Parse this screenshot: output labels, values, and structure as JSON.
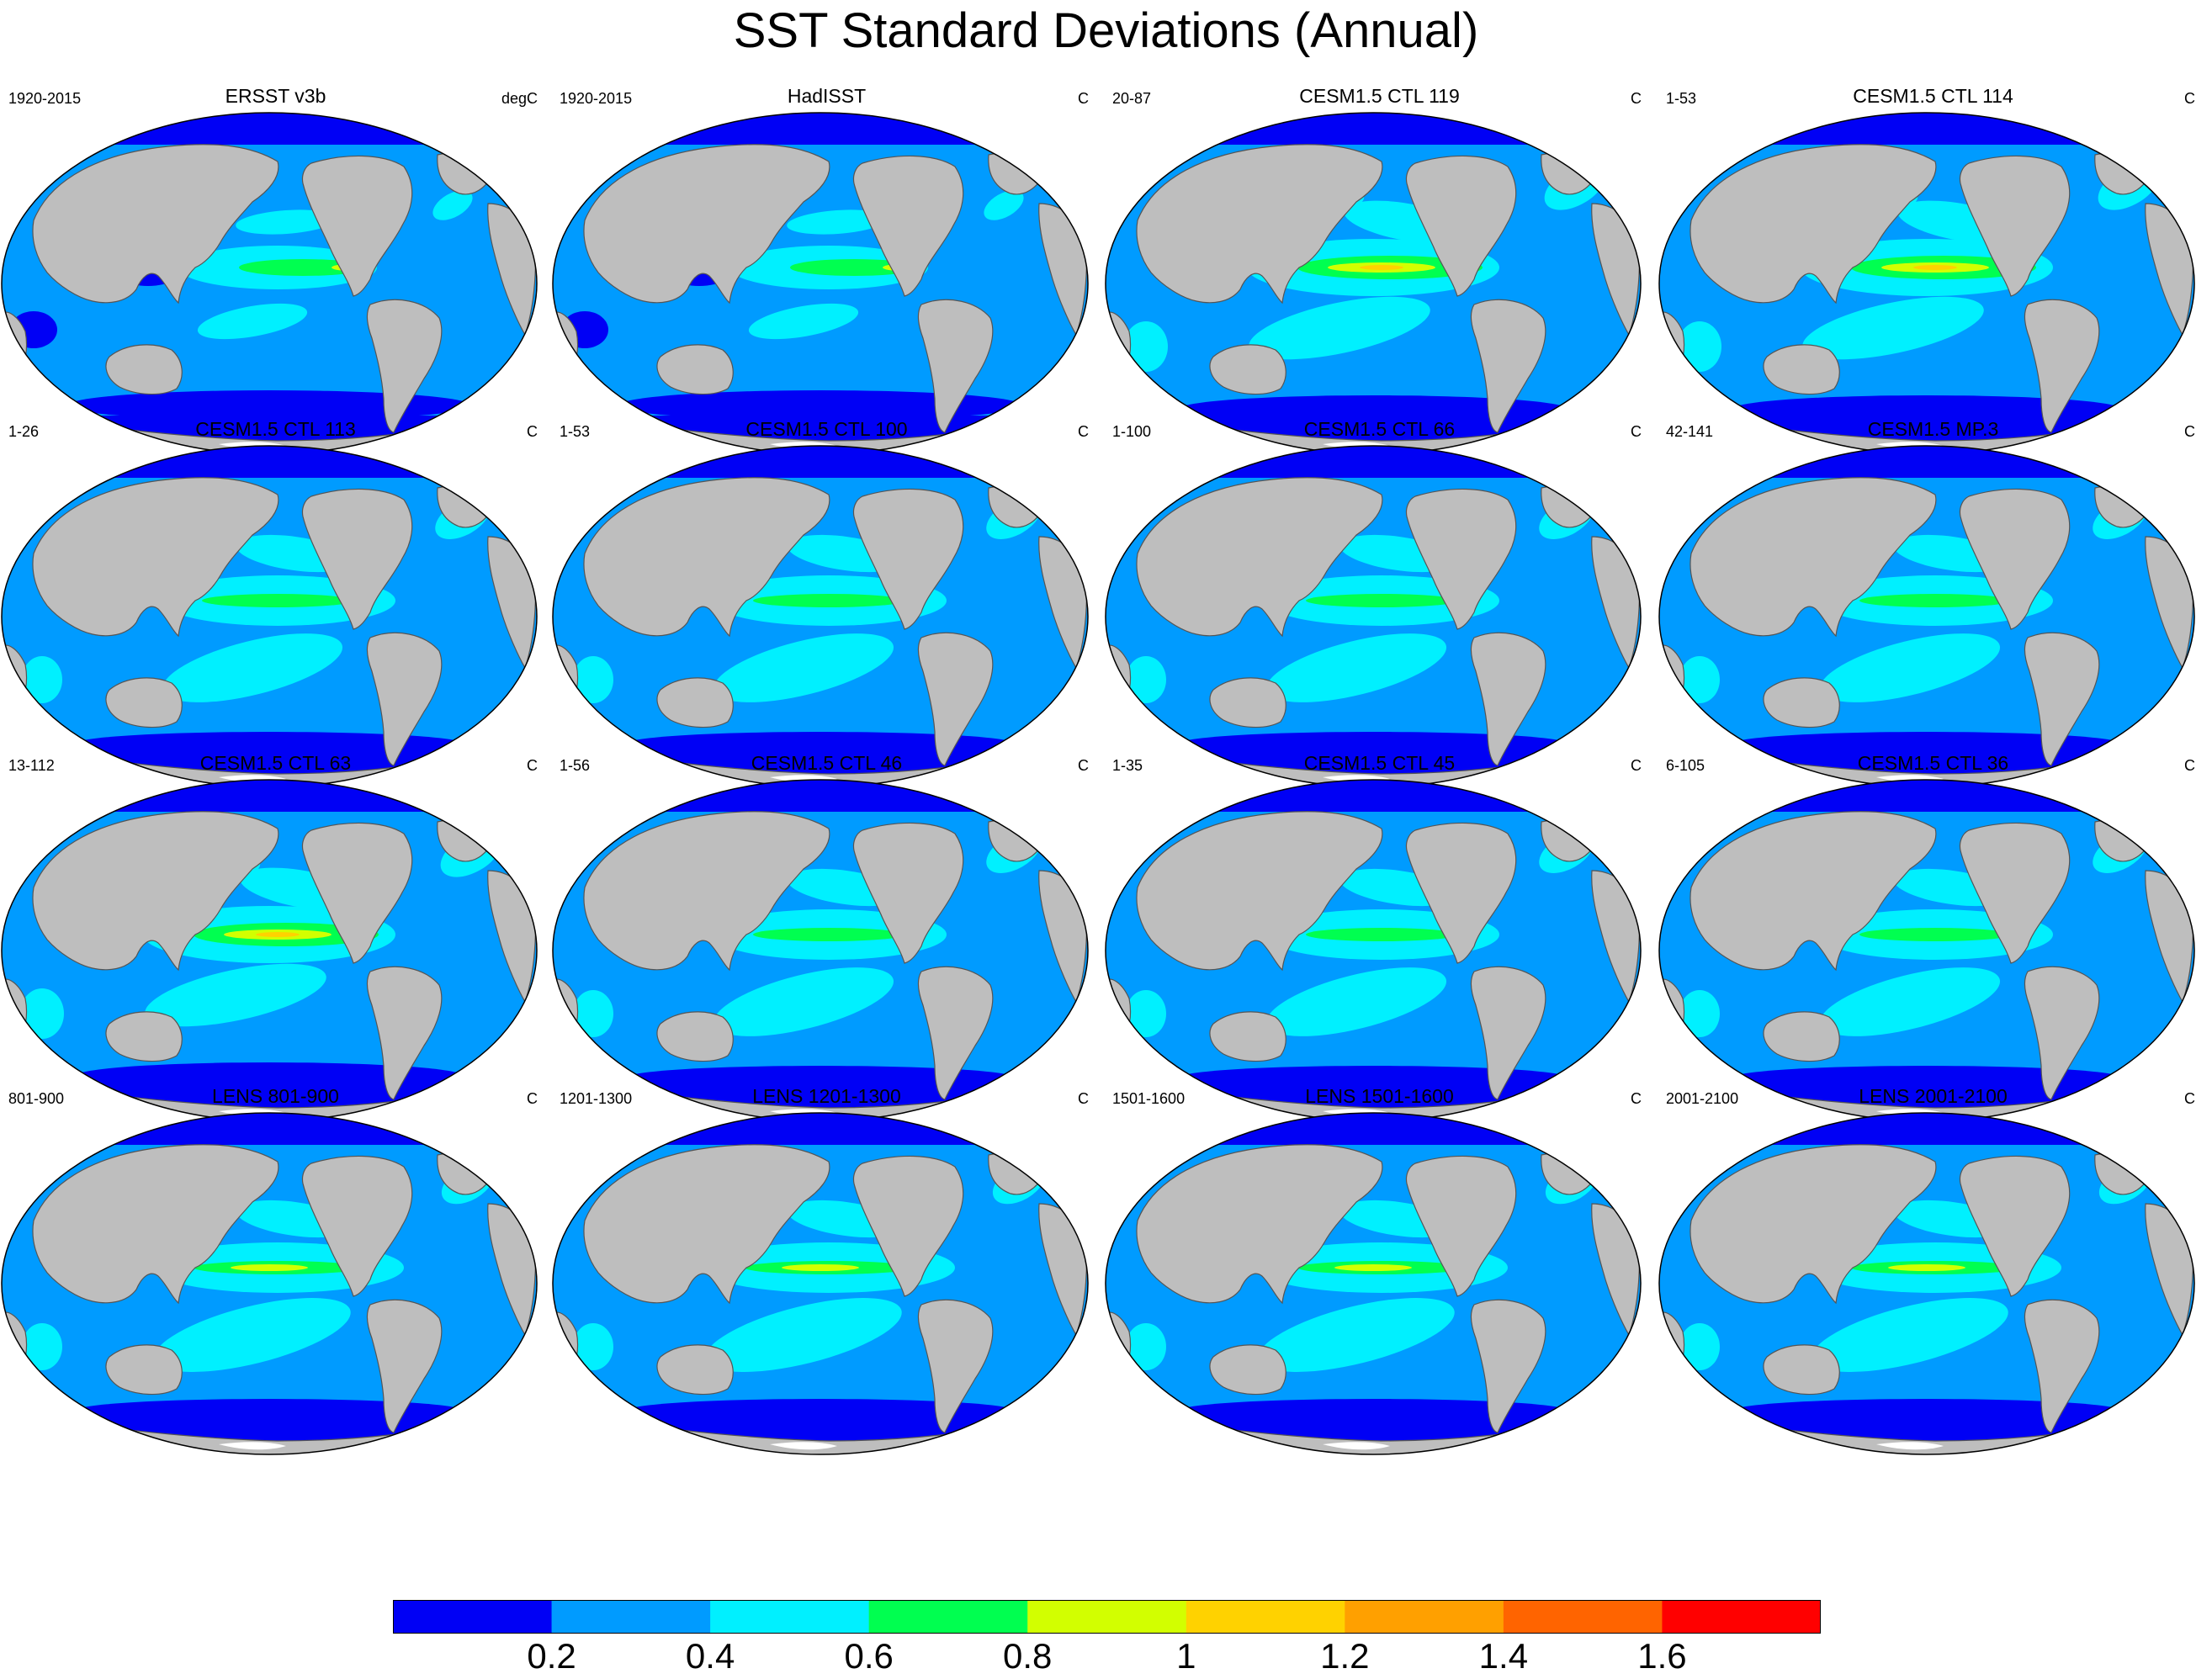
{
  "title": "SST Standard Deviations (Annual)",
  "panels": [
    {
      "title": "ERSST v3b",
      "period": "1920-2015",
      "units": "degC",
      "pattern": "obs"
    },
    {
      "title": "HadISST",
      "period": "1920-2015",
      "units": "C",
      "pattern": "obs"
    },
    {
      "title": "CESM1.5 CTL 119",
      "period": "20-87",
      "units": "C",
      "pattern": "strong"
    },
    {
      "title": "CESM1.5 CTL 114",
      "period": "1-53",
      "units": "C",
      "pattern": "strong"
    },
    {
      "title": "CESM1.5 CTL 113",
      "period": "1-26",
      "units": "C",
      "pattern": "medium"
    },
    {
      "title": "CESM1.5 CTL 100",
      "period": "1-53",
      "units": "C",
      "pattern": "medium"
    },
    {
      "title": "CESM1.5 CTL 66",
      "period": "1-100",
      "units": "C",
      "pattern": "medium"
    },
    {
      "title": "CESM1.5 MP.3",
      "period": "42-141",
      "units": "C",
      "pattern": "medium"
    },
    {
      "title": "CESM1.5 CTL 63",
      "period": "13-112",
      "units": "C",
      "pattern": "strong"
    },
    {
      "title": "CESM1.5 CTL 46",
      "period": "1-56",
      "units": "C",
      "pattern": "medium"
    },
    {
      "title": "CESM1.5 CTL 45",
      "period": "1-35",
      "units": "C",
      "pattern": "medium"
    },
    {
      "title": "CESM1.5 CTL 36",
      "period": "6-105",
      "units": "C",
      "pattern": "medium"
    },
    {
      "title": "LENS 801-900",
      "period": "801-900",
      "units": "C",
      "pattern": "lens"
    },
    {
      "title": "LENS 1201-1300",
      "period": "1201-1300",
      "units": "C",
      "pattern": "lens"
    },
    {
      "title": "LENS 1501-1600",
      "period": "1501-1600",
      "units": "C",
      "pattern": "lens"
    },
    {
      "title": "LENS 2001-2100",
      "period": "2001-2100",
      "units": "C",
      "pattern": "lens"
    }
  ],
  "colorbar": {
    "labels": [
      "0.2",
      "0.4",
      "0.6",
      "0.8",
      "1",
      "1.2",
      "1.4",
      "1.6"
    ],
    "colors": [
      "#0000f5",
      "#009bff",
      "#00f0ff",
      "#00ff50",
      "#d2ff00",
      "#ffd200",
      "#ffa000",
      "#ff6400",
      "#ff0000"
    ]
  },
  "map_colors": {
    "land": "#bebebe",
    "ice": "#ffffff"
  }
}
